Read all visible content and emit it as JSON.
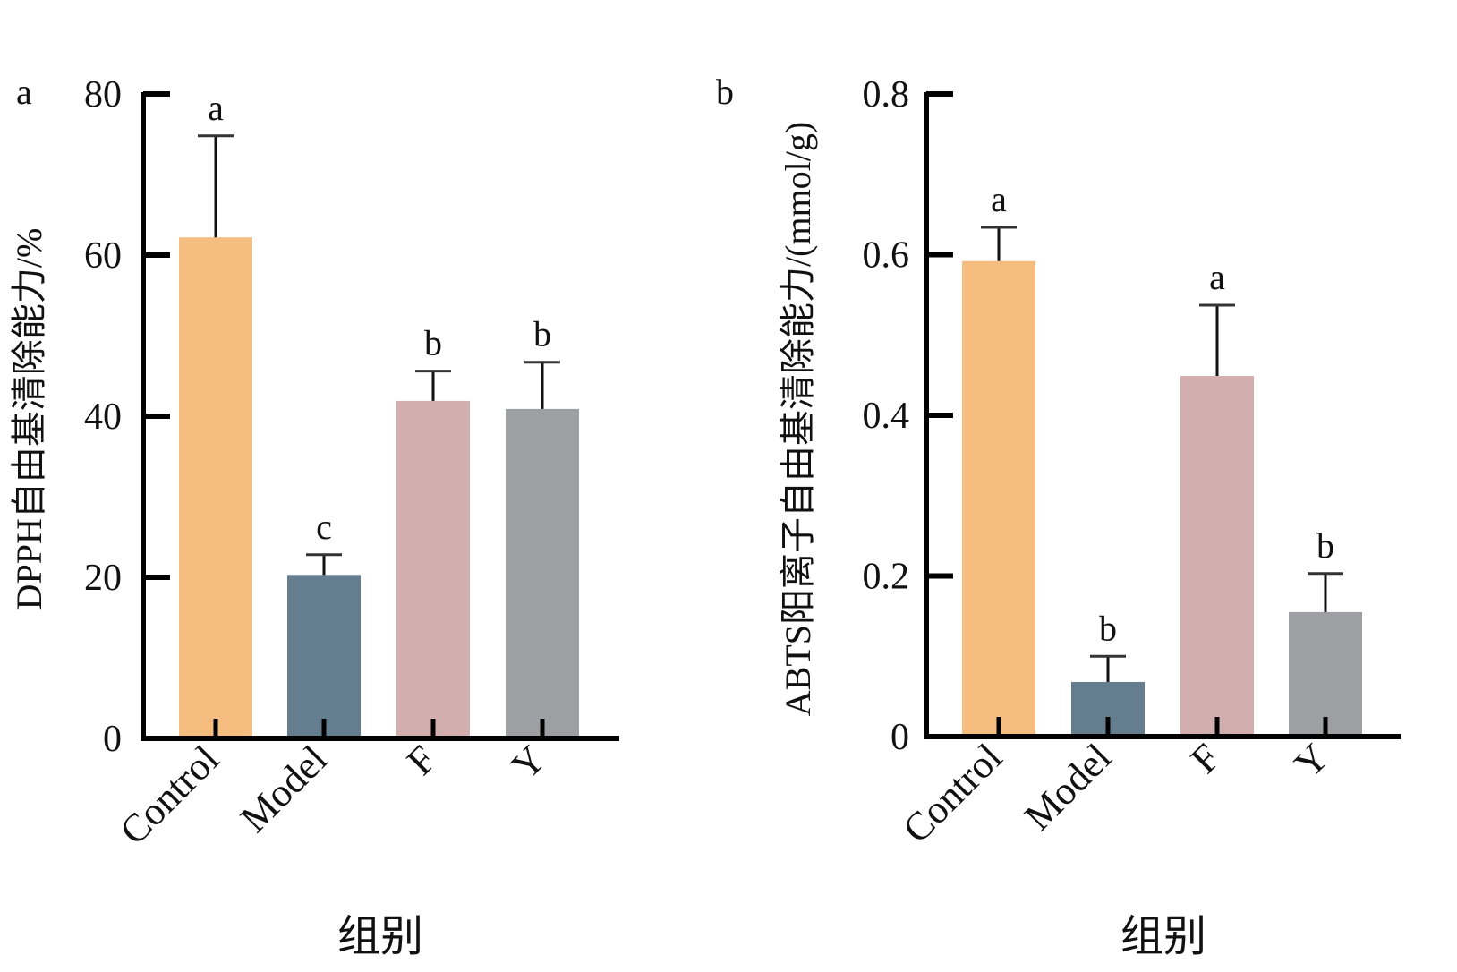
{
  "chart_data": [
    {
      "panel_label": "a",
      "type": "bar",
      "categories": [
        "Control",
        "Model",
        "F",
        "Y"
      ],
      "values": [
        62.2,
        20.3,
        41.9,
        40.9
      ],
      "error_upper": [
        74.8,
        22.8,
        45.6,
        46.7
      ],
      "significance": [
        "a",
        "c",
        "b",
        "b"
      ],
      "colors": [
        "#F5BD80",
        "#647D8F",
        "#D3AEAE",
        "#9E9FA3"
      ],
      "xlabel": "组别",
      "ylabel": "DPPH自由基清除能力/%",
      "ylim": [
        0,
        80
      ],
      "yticks": [
        0,
        20,
        40,
        60,
        80
      ],
      "ytick_labels": [
        "0",
        "20",
        "40",
        "60",
        "80"
      ],
      "grid": false
    },
    {
      "panel_label": "b",
      "type": "bar",
      "categories": [
        "Control",
        "Model",
        "F",
        "Y"
      ],
      "values": [
        0.592,
        0.068,
        0.449,
        0.155
      ],
      "error_upper": [
        0.634,
        0.1,
        0.537,
        0.203
      ],
      "significance": [
        "a",
        "b",
        "a",
        "b"
      ],
      "colors": [
        "#F5BD80",
        "#647D8F",
        "#D3AEAE",
        "#9E9FA3"
      ],
      "xlabel": "组别",
      "ylabel": "ABTS阳离子自由基清除能力/(mmol/g)",
      "ylim": [
        0,
        0.8
      ],
      "yticks": [
        0,
        0.2,
        0.4,
        0.6,
        0.8
      ],
      "ytick_labels": [
        "0",
        "0.2",
        "0.4",
        "0.6",
        "0.8"
      ],
      "grid": false
    }
  ]
}
